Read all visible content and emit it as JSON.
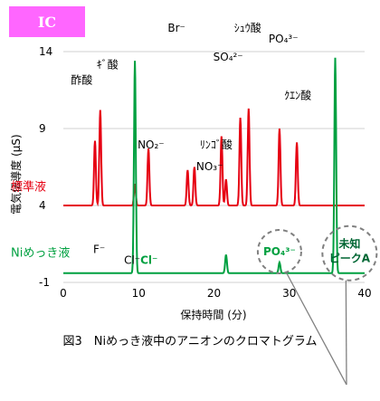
{
  "badge": {
    "label": "IC"
  },
  "caption": "図3　Niめっき液中のアニオンのクロマトグラム",
  "chart_data": {
    "type": "line",
    "xlabel": "保持時間 (分)",
    "ylabel": "電気伝導度 (μS)",
    "xlim": [
      0,
      40
    ],
    "ylim": [
      -1,
      14
    ],
    "x_ticks": [
      "0",
      "10",
      "20",
      "30",
      "40"
    ],
    "y_ticks": [
      "-1",
      "4",
      "9",
      "14"
    ],
    "series": [
      {
        "name": "標準液",
        "color": "#e60012",
        "baseline": 4.0,
        "peaks": [
          {
            "x": 4.2,
            "y": 8.2,
            "label": "F⁻"
          },
          {
            "x": 4.9,
            "y": 10.2,
            "label": "ｷﾞ酸"
          },
          {
            "x": 9.5,
            "y": 5.4,
            "label": "Cl⁻"
          },
          {
            "x": 11.3,
            "y": 7.7,
            "label": "NO₂⁻"
          },
          {
            "x": 16.5,
            "y": 6.3,
            "label": "Br⁻"
          },
          {
            "x": 17.4,
            "y": 6.5,
            "label": "NO₃⁻"
          },
          {
            "x": 21.0,
            "y": 8.5,
            "label": "ﾘﾝｺﾞ酸"
          },
          {
            "x": 21.6,
            "y": 5.7,
            "label": ""
          },
          {
            "x": 23.5,
            "y": 9.7,
            "label": "SO₄²⁻"
          },
          {
            "x": 24.6,
            "y": 10.3,
            "label": "ｼｭｳ酸"
          },
          {
            "x": 28.7,
            "y": 9.0,
            "label": "PO₄³⁻"
          },
          {
            "x": 31.0,
            "y": 8.1,
            "label": "ｸｴﾝ酸"
          }
        ],
        "extra_labels": [
          {
            "x": 4.6,
            "label": "酢酸"
          }
        ]
      },
      {
        "name": "Niめっき液",
        "color": "#00a040",
        "baseline": -0.4,
        "peaks": [
          {
            "x": 9.5,
            "y": 13.4,
            "label": "Cl⁻"
          },
          {
            "x": 21.6,
            "y": 0.8,
            "label": ""
          },
          {
            "x": 28.7,
            "y": 0.3,
            "label": "PO₄³⁻"
          },
          {
            "x": 36.1,
            "y": 13.6,
            "label": "未知ピークA"
          }
        ]
      }
    ]
  }
}
